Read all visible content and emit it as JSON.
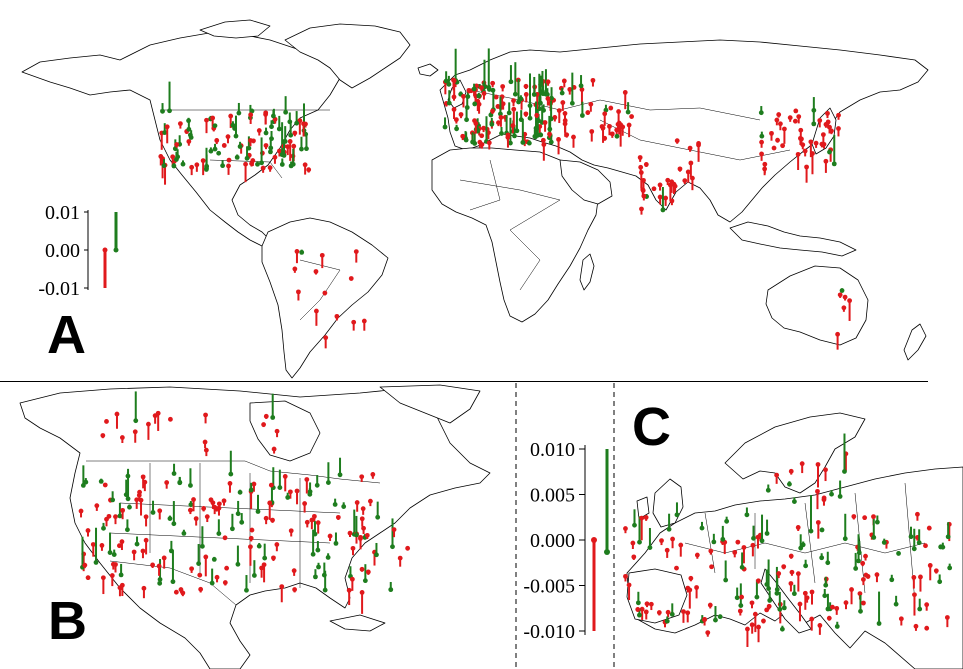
{
  "panels": {
    "a": {
      "letter": "A",
      "scale_ticks": [
        "0.01",
        "0.00",
        "-0.01"
      ]
    },
    "b": {
      "letter": "B"
    },
    "c": {
      "letter": "C"
    },
    "shared_scale": {
      "ticks": [
        "0.010",
        "0.005",
        "0.000",
        "-0.005",
        "-0.010"
      ]
    }
  },
  "colors": {
    "positive": "#1e7d1e",
    "negative": "#e0191c",
    "outline": "#000000"
  },
  "legend_bars": {
    "a": {
      "negative": -0.01,
      "positive": 0.01
    },
    "shared": {
      "negative": -0.01,
      "positive": 0.01
    }
  }
}
